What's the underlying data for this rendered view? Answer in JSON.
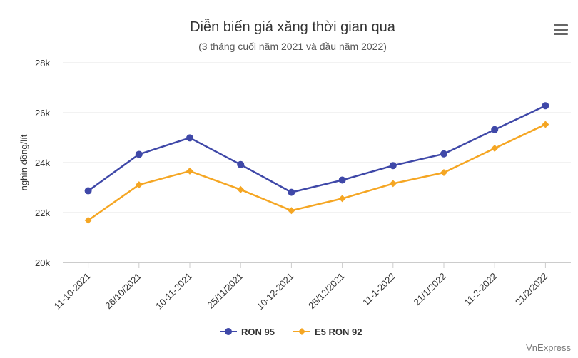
{
  "chart_data": {
    "type": "line",
    "title": "Diễn biến giá xăng thời gian qua",
    "subtitle": "(3 tháng cuối năm 2021 và đầu năm 2022)",
    "xlabel": "",
    "ylabel": "nghìn đồng/lít",
    "categories": [
      "11-10-2021",
      "26/10/2021",
      "10-11-2021",
      "25/11/2021",
      "10-12-2021",
      "25/12/2021",
      "11-1-2022",
      "21/1/2022",
      "11-2-2022",
      "21/2/2022"
    ],
    "ylim": [
      20000,
      28000
    ],
    "yticks": [
      20000,
      22000,
      24000,
      26000,
      28000
    ],
    "ytick_labels": [
      "20k",
      "22k",
      "24k",
      "26k",
      "28k"
    ],
    "grid": true,
    "legend_position": "bottom",
    "series": [
      {
        "name": "RON 95",
        "color": "#3f48a8",
        "marker": "circle",
        "values": [
          22870,
          24330,
          24990,
          23920,
          22810,
          23300,
          23880,
          24350,
          25320,
          26280
        ]
      },
      {
        "name": "E5 RON 92",
        "color": "#f5a623",
        "marker": "diamond",
        "values": [
          21690,
          23110,
          23660,
          22920,
          22080,
          22560,
          23160,
          23600,
          24570,
          25530
        ]
      }
    ],
    "credit": "VnExpress",
    "menu_icon": "hamburger-menu-icon"
  }
}
